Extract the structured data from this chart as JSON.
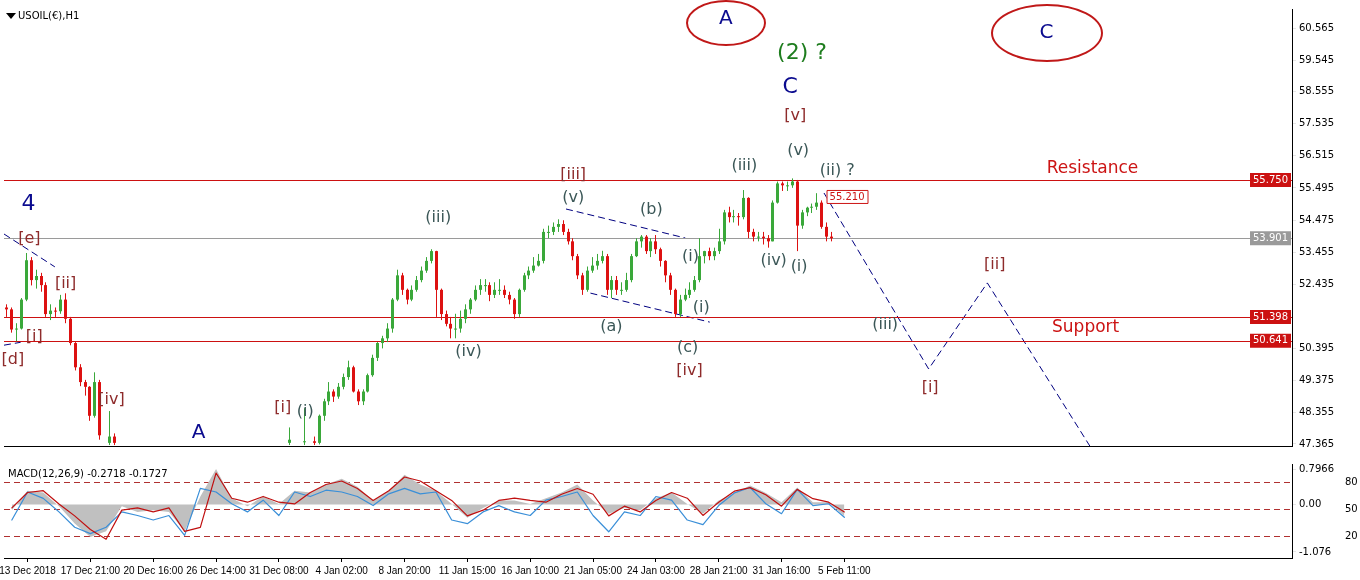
{
  "chart_data": [
    {
      "type": "candlestick",
      "title": "USOIL(€),H1",
      "categories": [
        null,
        null,
        null,
        null,
        null,
        null,
        null,
        null,
        null,
        null,
        null,
        null,
        null,
        null,
        null,
        null,
        null,
        null,
        null,
        null,
        null,
        null,
        null,
        null,
        null,
        null,
        null,
        null,
        null,
        null,
        null,
        null,
        null,
        null,
        null,
        null,
        null,
        null,
        null,
        null,
        null,
        null,
        null,
        null,
        null,
        null,
        null,
        null,
        null,
        null,
        null,
        null,
        null,
        null,
        null,
        null,
        null,
        null,
        null,
        null,
        null,
        null,
        null,
        null,
        null,
        null,
        null,
        null,
        null,
        null,
        null,
        null,
        null,
        null,
        null,
        null,
        null,
        null,
        null,
        null,
        null,
        null,
        null,
        null,
        null,
        null,
        null,
        null,
        null,
        null,
        null,
        null,
        null,
        null,
        null,
        null,
        null,
        null,
        null,
        null,
        null,
        null,
        null,
        null,
        null,
        null,
        null,
        null,
        null,
        null,
        null,
        null,
        null,
        null,
        null,
        null,
        null,
        null,
        null,
        null,
        null,
        null,
        null,
        null,
        null,
        null,
        null,
        null,
        null,
        null,
        null,
        null,
        null,
        null,
        null,
        null,
        null,
        null,
        null,
        null,
        null,
        null,
        null,
        null,
        null,
        null,
        null,
        null,
        null,
        null,
        null,
        null,
        null,
        null,
        null,
        null,
        null,
        null,
        null,
        null,
        null,
        null,
        null,
        null,
        null,
        null,
        null,
        null,
        null,
        null,
        null,
        null,
        null,
        null,
        null,
        null,
        null,
        null,
        null,
        null,
        null,
        null,
        null,
        null,
        null,
        null,
        null,
        null,
        null,
        null,
        null,
        null,
        null,
        null,
        null,
        null,
        null,
        null,
        null,
        null,
        null,
        null,
        null,
        null,
        null,
        null,
        null,
        null,
        null,
        null,
        null,
        null,
        null,
        null,
        null,
        null,
        null,
        null,
        null,
        null,
        null,
        null,
        null,
        null,
        null,
        null,
        null,
        null,
        null,
        null,
        null,
        null,
        null,
        null,
        null,
        null,
        null,
        null,
        null,
        null,
        null,
        null,
        null,
        null,
        null,
        null,
        null,
        null,
        null,
        null,
        null,
        null,
        null,
        null,
        null,
        null,
        null,
        null,
        null,
        null,
        null,
        null,
        null,
        null
      ],
      "ohlc": [
        [
          51.7,
          51.8,
          51.4,
          51.64
        ],
        [
          51.64,
          51.7,
          50.9,
          51.0
        ],
        [
          51.0,
          51.2,
          50.63,
          51.03
        ],
        [
          51.03,
          52.0,
          51.0,
          51.95
        ],
        [
          51.95,
          53.43,
          51.9,
          53.2
        ],
        [
          53.2,
          53.3,
          52.4,
          52.57
        ],
        [
          52.57,
          52.9,
          52.3,
          52.7
        ],
        [
          52.7,
          52.8,
          52.2,
          52.41
        ],
        [
          52.41,
          52.5,
          51.4,
          51.49
        ],
        [
          51.49,
          51.8,
          51.3,
          51.6
        ],
        [
          51.6,
          51.7,
          51.4,
          51.58
        ],
        [
          51.58,
          52.1,
          51.5,
          51.95
        ],
        [
          51.95,
          52.15,
          51.2,
          51.34
        ],
        [
          51.34,
          51.4,
          50.5,
          50.57
        ],
        [
          50.57,
          50.6,
          49.7,
          49.8
        ],
        [
          49.8,
          49.9,
          49.2,
          49.33
        ],
        [
          49.33,
          49.4,
          48.9,
          49.18
        ],
        [
          49.18,
          49.2,
          48.1,
          48.26
        ],
        [
          48.26,
          49.64,
          48.2,
          49.33
        ],
        [
          49.33,
          49.4,
          47.5,
          47.64
        ],
        null,
        [
          47.4,
          48.41,
          47.33,
          47.6
        ],
        [
          47.6,
          47.7,
          47.33,
          47.4
        ],
        null,
        null,
        null,
        null,
        null,
        null,
        null,
        null,
        null,
        null,
        null,
        null,
        null,
        null,
        null,
        null,
        null,
        null,
        null,
        null,
        null,
        null,
        null,
        null,
        null,
        null,
        null,
        null,
        null,
        null,
        null,
        null,
        null,
        null,
        null,
        [
          47.4,
          47.89,
          47.33,
          47.5
        ],
        null,
        null,
        [
          47.45,
          48.5,
          47.33,
          47.45
        ],
        null,
        [
          47.45,
          47.6,
          47.33,
          47.4
        ],
        [
          47.4,
          48.3,
          47.35,
          48.26
        ],
        [
          48.26,
          48.8,
          48.1,
          48.72
        ],
        [
          48.72,
          49.33,
          48.6,
          49.03
        ],
        [
          49.03,
          49.1,
          48.7,
          48.87
        ],
        [
          48.87,
          49.3,
          48.8,
          49.18
        ],
        [
          49.18,
          49.6,
          49.1,
          49.49
        ],
        [
          49.49,
          50.01,
          49.4,
          49.8
        ],
        [
          49.8,
          49.85,
          49.0,
          49.03
        ],
        [
          49.03,
          49.1,
          48.6,
          48.72
        ],
        [
          48.72,
          49.1,
          48.6,
          49.03
        ],
        [
          49.03,
          49.6,
          49.0,
          49.55
        ],
        [
          49.55,
          50.2,
          49.5,
          50.1
        ],
        [
          50.1,
          50.6,
          50.0,
          50.57
        ],
        [
          50.57,
          50.8,
          50.4,
          50.72
        ],
        [
          50.72,
          51.2,
          50.6,
          51.03
        ],
        [
          51.03,
          52.0,
          50.9,
          51.95
        ],
        [
          51.95,
          52.9,
          51.9,
          52.72
        ],
        [
          52.72,
          52.8,
          52.1,
          52.26
        ],
        [
          52.26,
          52.3,
          51.8,
          51.95
        ],
        [
          51.95,
          52.4,
          51.9,
          52.26
        ],
        [
          52.26,
          52.7,
          52.2,
          52.57
        ],
        [
          52.57,
          53.0,
          52.5,
          52.87
        ],
        [
          52.87,
          53.3,
          52.8,
          53.18
        ],
        [
          53.18,
          53.55,
          53.1,
          53.49
        ],
        [
          53.49,
          53.5,
          51.4,
          52.26
        ],
        [
          52.26,
          52.3,
          51.3,
          51.49
        ],
        [
          51.49,
          51.6,
          51.1,
          51.18
        ],
        [
          51.18,
          51.4,
          50.72,
          51.03
        ],
        [
          51.03,
          51.5,
          50.72,
          51.03
        ],
        [
          51.03,
          51.6,
          50.9,
          51.34
        ],
        [
          51.34,
          51.8,
          51.2,
          51.64
        ],
        [
          51.64,
          52.0,
          51.5,
          51.95
        ],
        [
          51.95,
          52.4,
          51.9,
          52.26
        ],
        [
          52.26,
          52.6,
          52.1,
          52.41
        ],
        [
          52.41,
          52.6,
          52.2,
          52.41
        ],
        [
          52.41,
          52.5,
          51.9,
          52.1
        ],
        [
          52.1,
          52.5,
          52.0,
          52.26
        ],
        [
          52.26,
          52.6,
          52.1,
          52.26
        ],
        [
          52.26,
          52.4,
          52.0,
          52.1
        ],
        [
          52.1,
          52.2,
          51.8,
          51.95
        ],
        [
          51.95,
          52.0,
          51.34,
          51.49
        ],
        [
          51.49,
          52.3,
          51.4,
          52.26
        ],
        [
          52.26,
          52.8,
          52.2,
          52.72
        ],
        [
          52.72,
          53.0,
          52.6,
          52.87
        ],
        [
          52.87,
          53.3,
          52.8,
          53.03
        ],
        [
          53.03,
          53.4,
          53.0,
          53.18
        ],
        [
          53.18,
          54.2,
          53.1,
          54.1
        ],
        [
          54.1,
          54.3,
          53.9,
          54.1
        ],
        [
          54.1,
          54.4,
          54.0,
          54.26
        ],
        [
          54.26,
          54.5,
          54.1,
          54.35
        ],
        [
          54.35,
          54.47,
          54.0,
          54.1
        ],
        [
          54.1,
          54.2,
          53.7,
          53.8
        ],
        [
          53.8,
          53.9,
          53.2,
          53.33
        ],
        [
          53.33,
          53.4,
          52.6,
          52.72
        ],
        [
          52.72,
          52.8,
          52.1,
          52.26
        ],
        [
          52.26,
          53.0,
          52.2,
          52.87
        ],
        [
          52.87,
          53.3,
          52.8,
          53.03
        ],
        [
          53.03,
          53.4,
          52.9,
          53.18
        ],
        [
          53.18,
          53.5,
          53.1,
          53.33
        ],
        [
          53.33,
          53.4,
          52.1,
          52.26
        ],
        [
          52.26,
          52.7,
          52.0,
          52.57
        ],
        [
          52.57,
          52.7,
          52.1,
          52.26
        ],
        [
          52.26,
          52.5,
          52.1,
          52.26
        ],
        [
          52.26,
          52.8,
          52.2,
          52.57
        ],
        [
          52.57,
          53.4,
          52.5,
          53.33
        ],
        [
          53.33,
          53.9,
          53.3,
          53.8
        ],
        [
          53.8,
          54.0,
          53.6,
          53.95
        ],
        [
          53.95,
          54.0,
          53.4,
          53.49
        ],
        [
          53.49,
          53.9,
          53.3,
          53.8
        ],
        [
          53.8,
          54.0,
          53.4,
          53.55
        ],
        [
          53.55,
          53.6,
          53.0,
          53.18
        ],
        [
          53.18,
          53.2,
          52.5,
          52.72
        ],
        [
          52.72,
          52.8,
          52.1,
          52.26
        ],
        [
          52.26,
          52.3,
          51.4,
          51.49
        ],
        [
          51.49,
          52.1,
          51.4,
          51.95
        ],
        [
          51.95,
          52.3,
          51.9,
          52.1
        ],
        [
          52.1,
          52.5,
          52.0,
          52.26
        ],
        [
          52.26,
          52.7,
          52.2,
          52.57
        ],
        [
          52.57,
          53.9,
          52.5,
          53.33
        ],
        [
          53.33,
          53.5,
          53.1,
          53.49
        ],
        [
          53.49,
          53.6,
          53.2,
          53.33
        ],
        [
          53.33,
          53.6,
          53.2,
          53.49
        ],
        [
          53.49,
          54.2,
          53.4,
          53.8
        ],
        [
          53.8,
          54.8,
          53.7,
          54.72
        ],
        [
          54.72,
          54.9,
          54.4,
          54.57
        ],
        [
          54.57,
          54.8,
          54.4,
          54.6
        ],
        [
          54.6,
          54.7,
          54.3,
          54.57
        ],
        [
          54.57,
          55.43,
          54.5,
          55.18
        ],
        [
          55.18,
          55.2,
          53.9,
          54.1
        ],
        [
          54.1,
          54.2,
          53.8,
          53.95
        ],
        [
          53.95,
          54.1,
          53.8,
          53.95
        ],
        [
          53.95,
          54.1,
          53.7,
          53.9
        ],
        [
          53.9,
          54.0,
          53.6,
          53.8
        ],
        [
          53.8,
          55.1,
          53.8,
          55.03
        ],
        [
          55.03,
          55.7,
          55.0,
          55.64
        ],
        [
          55.64,
          55.7,
          55.4,
          55.58
        ],
        [
          55.58,
          55.7,
          55.4,
          55.58
        ],
        [
          55.58,
          55.8,
          55.5,
          55.7
        ],
        [
          55.7,
          55.75,
          53.49,
          54.3
        ],
        [
          54.3,
          54.8,
          54.2,
          54.72
        ],
        [
          54.72,
          54.9,
          54.6,
          54.87
        ],
        [
          54.87,
          55.0,
          54.7,
          54.9
        ],
        [
          54.9,
          55.33,
          54.8,
          55.03
        ],
        [
          55.03,
          55.1,
          54.2,
          54.26
        ],
        [
          54.26,
          54.4,
          53.8,
          53.95
        ],
        [
          53.95,
          54.1,
          53.8,
          53.9
        ],
        null,
        null,
        null,
        null,
        null,
        null,
        null,
        null,
        null,
        null,
        null,
        null,
        null,
        null,
        null,
        null,
        null,
        null,
        null,
        null,
        null,
        null,
        null,
        null,
        null,
        null,
        null,
        null,
        null,
        null,
        null,
        null,
        null,
        null,
        null,
        null,
        null,
        null,
        null,
        null,
        null,
        null,
        null,
        null,
        null,
        null,
        null,
        null,
        null,
        null,
        null,
        null,
        null,
        null,
        null,
        null,
        null,
        null,
        null,
        null,
        null,
        null,
        null,
        null,
        null,
        null,
        null,
        null,
        null,
        null,
        null,
        null,
        null,
        null,
        null,
        null,
        null,
        null,
        null,
        null,
        null,
        null,
        null,
        null,
        null,
        null,
        null,
        null,
        null,
        null,
        null,
        null,
        null,
        null
      ],
      "ylim": [
        47.3,
        61.18
      ],
      "yticks": [
        47.365,
        48.355,
        49.375,
        50.395,
        52.435,
        53.455,
        54.475,
        55.495,
        56.515,
        57.535,
        58.555,
        59.545,
        60.565
      ],
      "tick_labels": "y",
      "grid": false,
      "legend": false,
      "ref_lines": [
        {
          "axis": "y",
          "value": 55.75,
          "label": "55.750",
          "color": "#cc1111"
        },
        {
          "axis": "y",
          "value": 51.398,
          "label": "51.398",
          "color": "#cc1111"
        },
        {
          "axis": "y",
          "value": 50.641,
          "label": "50.641",
          "color": "#cc1111"
        },
        {
          "axis": "y",
          "value": 53.901,
          "label": "53.901",
          "color": "#9a9a9a"
        }
      ],
      "annotations": [
        {
          "text": "4",
          "y": 53.43
        },
        {
          "text": "[e]",
          "y": 53.43
        },
        {
          "text": "[ii]",
          "y": 52.15
        },
        {
          "text": "[i]",
          "y": 51.3
        },
        {
          "text": "[d]",
          "y": 50.63
        },
        "[iv]",
        "A",
        "[i]",
        {
          "text": "(i)",
          "y": 48.5
        },
        {
          "text": "(iii)",
          "y": 53.55
        },
        {
          "text": "(iv)",
          "y": 50.72
        },
        "[iii]",
        "(v)",
        {
          "text": "(b)",
          "y": 54.0
        },
        {
          "text": "(a)",
          "y": 52.0
        },
        {
          "text": "(c)",
          "y": 51.4
        },
        {
          "text": "[iv]",
          "y": 51.4
        },
        {
          "text": "(i)",
          "y": 53.9
        },
        "(i)",
        {
          "text": "(iii)",
          "y": 55.43
        },
        "(iv)",
        {
          "text": "(i)",
          "y": 53.49
        },
        {
          "text": "(v)",
          "y": 55.8
        },
        "[v]",
        "C",
        "(2) ?",
        "(ii) ?",
        "A",
        "C",
        {
          "text": "Resistance",
          "y": 55.75
        },
        "Support",
        "(iii)",
        "[i]",
        "[ii]",
        {
          "text": "55.210",
          "y": 55.21
        }
      ]
    },
    {
      "type": "bar",
      "title": "MACD(12,26,9) -0.2718 -0.1727",
      "categories": [
        null,
        "13 Dec 2018",
        null,
        null,
        null,
        "17 Dec 21:00",
        null,
        null,
        null,
        "20 Dec 16:00",
        null,
        null,
        null,
        "26 Dec 14:00",
        null,
        null,
        null,
        "31 Dec 08:00",
        null,
        null,
        null,
        "4 Jan 02:00",
        null,
        null,
        null,
        "8 Jan 20:00",
        null,
        null,
        null,
        "11 Jan 15:00",
        null,
        null,
        null,
        "16 Jan 10:00",
        null,
        null,
        null,
        "21 Jan 05:00",
        null,
        null,
        null,
        "24 Jan 03:00",
        null,
        null,
        null,
        "28 Jan 21:00",
        null,
        null,
        null,
        "31 Jan 16:00",
        null,
        null,
        null,
        "5 Feb 11:00",
        null,
        null,
        null,
        null,
        null,
        null,
        null,
        null,
        null,
        null,
        null,
        null,
        null,
        null,
        null,
        null,
        null,
        null,
        null,
        null,
        null,
        null,
        null,
        null,
        null,
        null,
        null,
        null
      ],
      "series": [
        {
          "type": "area",
          "color": "#c0c0c0",
          "values": [
            -0.13,
            0.31,
            0.27,
            -0.04,
            -0.43,
            -0.74,
            -0.61,
            -0.04,
            -0.17,
            -0.13,
            -0.17,
            -0.61,
            0.18,
            0.8,
            0.14,
            -0.04,
            0.18,
            0.01,
            0.31,
            0.27,
            0.45,
            0.58,
            0.4,
            0.09,
            0.31,
            0.67,
            0.45,
            0.31,
            0.01,
            -0.3,
            -0.08,
            0.09,
            0.09,
            0.01,
            0.14,
            0.27,
            0.45,
            0.09,
            -0.21,
            -0.08,
            -0.13,
            0.14,
            0.27,
            0.01,
            -0.21,
            0.09,
            0.26,
            0.43,
            0.26,
            0.05,
            0.38,
            0.05,
            0.05,
            -0.27,
            null,
            null,
            null,
            null,
            null,
            null,
            null,
            null,
            null,
            null,
            null,
            null,
            null,
            null,
            null,
            null,
            null,
            null,
            null,
            null,
            null,
            null,
            null,
            null,
            null,
            null,
            null,
            null
          ]
        },
        {
          "type": "line",
          "color": "#c01010",
          "values": [
            -0.08,
            0.27,
            0.31,
            0.01,
            -0.26,
            -0.57,
            -0.79,
            -0.13,
            -0.08,
            -0.17,
            -0.08,
            -0.61,
            -0.52,
            0.71,
            0.14,
            0.05,
            0.18,
            0.05,
            0.01,
            0.27,
            0.45,
            0.53,
            0.36,
            0.09,
            0.31,
            0.62,
            0.53,
            0.31,
            0.09,
            -0.26,
            -0.13,
            0.09,
            0.14,
            0.09,
            0.05,
            0.23,
            0.36,
            0.23,
            -0.26,
            -0.04,
            -0.17,
            0.09,
            0.27,
            0.14,
            -0.25,
            0.05,
            0.3,
            0.38,
            0.22,
            -0.04,
            0.34,
            0.13,
            0.05,
            -0.17,
            null,
            null,
            null,
            null,
            null,
            null,
            null,
            null,
            null,
            null,
            null,
            null,
            null,
            null,
            null,
            null,
            null,
            null,
            null,
            null,
            null,
            null,
            null,
            null,
            null,
            null,
            null,
            null
          ]
        },
        {
          "type": "line",
          "color": "#3a8fd8",
          "axis": "y2",
          "values": [
            38,
            69,
            62,
            47,
            30,
            23,
            30,
            47,
            43,
            38,
            43,
            21,
            73,
            69,
            56,
            47,
            60,
            43,
            69,
            64,
            71,
            69,
            64,
            54,
            67,
            73,
            67,
            69,
            38,
            34,
            47,
            54,
            47,
            43,
            60,
            64,
            69,
            43,
            25,
            47,
            43,
            64,
            60,
            38,
            33,
            54,
            68,
            74,
            56,
            45,
            72,
            54,
            56,
            41,
            null,
            null,
            null,
            null,
            null,
            null,
            null,
            null,
            null,
            null,
            null,
            null,
            null,
            null,
            null,
            null,
            null,
            null,
            null,
            null,
            null,
            null,
            null,
            null,
            null,
            null,
            null,
            null
          ]
        }
      ],
      "ylim": [
        -1.214,
        0.915
      ],
      "yticks": [
        0.7966,
        {
          "value": 0,
          "label": "0.00"
        },
        -1.076
      ],
      "y2lim": [
        -4,
        100
      ],
      "y2ticks": [
        20,
        50,
        80
      ],
      "grid": false,
      "legend": false,
      "ref_lines": [
        {
          "axis": "y2",
          "value": 80,
          "color": "#b03030",
          "line_style": "dashed"
        },
        {
          "axis": "y2",
          "value": 50,
          "color": "#b03030",
          "line_style": "dashed"
        },
        {
          "axis": "y2",
          "value": 20,
          "color": "#b03030",
          "line_style": "dashed"
        }
      ]
    }
  ]
}
